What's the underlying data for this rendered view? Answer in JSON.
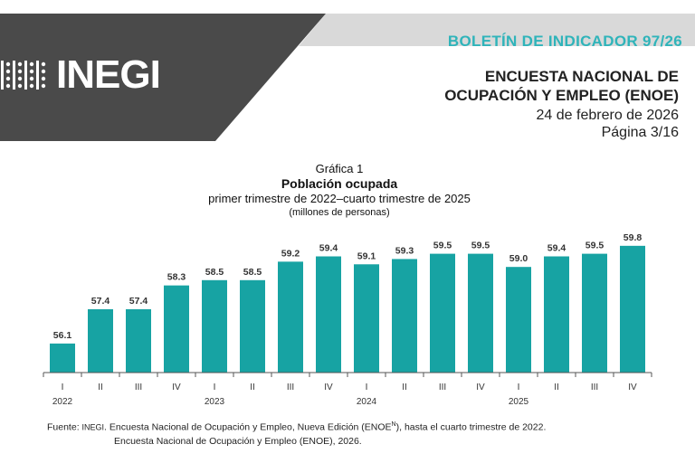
{
  "header": {
    "logo_text": "INEGI",
    "bulletin": "BOLETÍN DE INDICADOR 97/26",
    "survey_line1": "ENCUESTA NACIONAL DE",
    "survey_line2": "OCUPACIÓN Y EMPLEO (ENOE)",
    "date": "24 de febrero de 2026",
    "page": "Página 3/16",
    "colors": {
      "band_dark": "#4a4a4a",
      "band_light": "#d9d9d9",
      "accent": "#2fb4ba"
    }
  },
  "chart_data": {
    "type": "bar",
    "label": "Gráfica 1",
    "title": "Población ocupada",
    "subtitle": "primer trimestre de 2022–cuarto trimestre de 2025",
    "units": "(millones de personas)",
    "categories": [
      "I",
      "II",
      "III",
      "IV",
      "I",
      "II",
      "III",
      "IV",
      "I",
      "II",
      "III",
      "IV",
      "I",
      "II",
      "III",
      "IV"
    ],
    "years": [
      "2022",
      "2023",
      "2024",
      "2025"
    ],
    "values": [
      56.1,
      57.4,
      57.4,
      58.3,
      58.5,
      58.5,
      59.2,
      59.4,
      59.1,
      59.3,
      59.5,
      59.5,
      59.0,
      59.4,
      59.5,
      59.8
    ],
    "value_labels": [
      "56.1",
      "57.4",
      "57.4",
      "58.3",
      "58.5",
      "58.5",
      "59.2",
      "59.4",
      "59.1",
      "59.3",
      "59.5",
      "59.5",
      "59.0",
      "59.4",
      "59.5",
      "59.8"
    ],
    "ylim": [
      55.0,
      60.0
    ],
    "bar_color": "#17a3a3",
    "grid": false
  },
  "source": {
    "line1_prefix": "Fuente: ",
    "line1_org": "INEGI",
    "line1_text": ". Encuesta Nacional de Ocupación y Empleo, Nueva Edición (ENOE",
    "line1_sup": "N",
    "line1_end": "), hasta el cuarto trimestre de 2022.",
    "line2": "Encuesta Nacional de Ocupación y Empleo (ENOE), 2026."
  }
}
